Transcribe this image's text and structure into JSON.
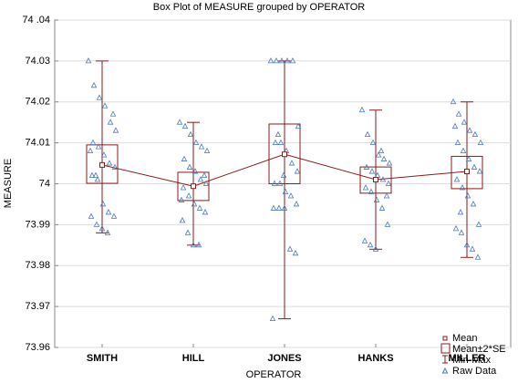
{
  "chart_data": {
    "type": "box",
    "title": "Box Plot of MEASURE grouped by  OPERATOR",
    "xlabel": "OPERATOR",
    "ylabel": "MEASURE",
    "categories": [
      "SMITH",
      "HILL",
      "JONES",
      "HANKS",
      "MILLER"
    ],
    "ylim": [
      73.96,
      74.04
    ],
    "yticks": [
      73.96,
      73.97,
      73.98,
      73.99,
      74,
      74.01,
      74.02,
      74.03,
      {
        "value": 74.04,
        "label": "74 .04"
      }
    ],
    "grid": true,
    "box_color": "#8b1a1a",
    "raw_color": "#4a7ab5",
    "mean": {
      "name": "Mean",
      "values": [
        74.0046,
        73.9994,
        74.0072,
        74.001,
        74.003
      ]
    },
    "se_box": {
      "name": "Mean±2*SE",
      "lower": [
        74.0001,
        73.9959,
        74.0,
        73.9977,
        73.9988
      ],
      "upper": [
        74.0095,
        74.0028,
        74.0146,
        74.0041,
        74.0067
      ]
    },
    "range": {
      "name": "Min-Max",
      "min": [
        73.988,
        73.985,
        73.967,
        73.984,
        73.982
      ],
      "max": [
        74.03,
        74.015,
        74.03,
        74.018,
        74.02
      ]
    },
    "raw": {
      "name": "Raw Data",
      "values": [
        [
          74.03,
          74.024,
          74.021,
          74.019,
          74.015,
          74.013,
          74.01,
          74.009,
          74.007,
          74.005,
          74.004,
          74.002,
          74.001,
          73.995,
          73.993,
          73.992,
          73.992,
          73.99,
          73.989,
          73.988,
          74.017,
          74.008,
          74.002
        ],
        [
          74.015,
          74.014,
          74.012,
          74.01,
          74.009,
          74.008,
          74.006,
          74.004,
          74.003,
          74.001,
          74.0,
          73.999,
          73.997,
          73.995,
          73.994,
          73.993,
          73.991,
          73.988,
          73.985,
          73.985,
          74.002,
          73.996
        ],
        [
          74.03,
          74.03,
          74.03,
          74.03,
          74.03,
          74.014,
          74.01,
          74.01,
          74.008,
          74.005,
          74.003,
          74.0,
          74.0,
          73.998,
          73.997,
          73.995,
          73.994,
          73.994,
          73.994,
          73.984,
          73.983,
          73.967,
          74.012,
          74.002
        ],
        [
          74.018,
          74.012,
          74.01,
          74.007,
          74.006,
          74.005,
          74.004,
          74.003,
          74.002,
          74.001,
          74.0,
          73.999,
          73.998,
          73.996,
          73.994,
          73.99,
          73.986,
          73.985,
          73.984,
          74.008,
          73.997
        ],
        [
          74.02,
          74.017,
          74.015,
          74.013,
          74.012,
          74.01,
          74.01,
          74.008,
          74.006,
          74.004,
          74.003,
          74.001,
          73.999,
          73.997,
          73.995,
          73.99,
          73.989,
          73.988,
          73.985,
          73.984,
          73.982,
          74.014,
          73.993
        ]
      ]
    }
  }
}
